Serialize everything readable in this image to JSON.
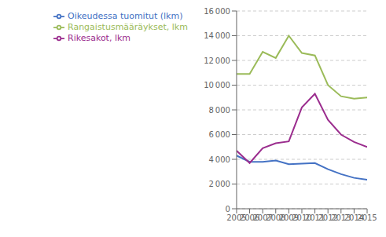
{
  "chart_data": {
    "type": "line",
    "x": [
      2005,
      2006,
      2007,
      2008,
      2009,
      2010,
      2011,
      2012,
      2013,
      2014,
      2015
    ],
    "series": [
      {
        "name": "Oikeudessa tuomitut (lkm)",
        "color": "#4472C4",
        "values": [
          4300,
          3800,
          3800,
          3900,
          3600,
          3650,
          3700,
          3200,
          2800,
          2500,
          2350
        ]
      },
      {
        "name": "Rangaistusmääräykset, lkm",
        "color": "#9BBB59",
        "values": [
          10900,
          10900,
          12700,
          12200,
          14000,
          12600,
          12400,
          10000,
          9100,
          8900,
          9000
        ]
      },
      {
        "name": "Rikesakot, lkm",
        "color": "#9B2D8E",
        "values": [
          4700,
          3700,
          4900,
          5300,
          5450,
          8200,
          9300,
          7200,
          6000,
          5400,
          5000
        ]
      }
    ],
    "xlim": [
      2005,
      2015
    ],
    "xticks": [
      2005,
      2006,
      2007,
      2008,
      2009,
      2010,
      2011,
      2012,
      2013,
      2014,
      2015
    ],
    "ylim": [
      0,
      16000
    ],
    "yticks": [
      0,
      {
        "value": 2000,
        "label": "2 000"
      },
      {
        "value": 4000,
        "label": "4 000"
      },
      {
        "value": 6000,
        "label": "6 000"
      },
      {
        "value": 8000,
        "label": "8 000"
      },
      {
        "value": 10000,
        "label": "10 000"
      },
      {
        "value": 12000,
        "label": "12 000"
      },
      {
        "value": 14000,
        "label": "14 000"
      },
      {
        "value": 16000,
        "label": "16 000"
      }
    ],
    "grid": true,
    "legend": "upper left"
  }
}
